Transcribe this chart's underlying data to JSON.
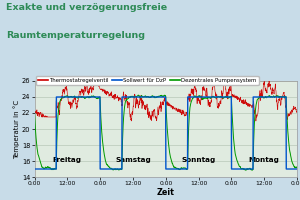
{
  "title_line1": "Exakte und verzögerungsfreie",
  "title_line2": "Raumtemperaturregelung",
  "xlabel": "Zeit",
  "ylabel": "Temperatur in °C",
  "ylim": [
    14,
    26
  ],
  "yticks": [
    14,
    16,
    18,
    20,
    22,
    24,
    26
  ],
  "xtick_labels": [
    "0:00",
    "12:00",
    "0:00",
    "12:00",
    "0:00",
    "12:00",
    "0:00",
    "12:00",
    "0:00"
  ],
  "day_labels": [
    "Freitag",
    "Samstag",
    "Sonntag",
    "Montag"
  ],
  "bg_color": "#c8dce8",
  "title_color": "#2e8b57",
  "plot_bg": "#e0ebe0",
  "grid_color": "#b8c8b8",
  "footer_color": "#3a9a5a",
  "legend_entries": [
    "Thermostatregelventil",
    "Sollwert für DzP",
    "Dezentrales Pumpensystem"
  ],
  "legend_colors": [
    "#cc0000",
    "#0055cc",
    "#009900"
  ],
  "n_points": 1200,
  "sollwert_high": 24.0,
  "sollwert_low": 15.0
}
